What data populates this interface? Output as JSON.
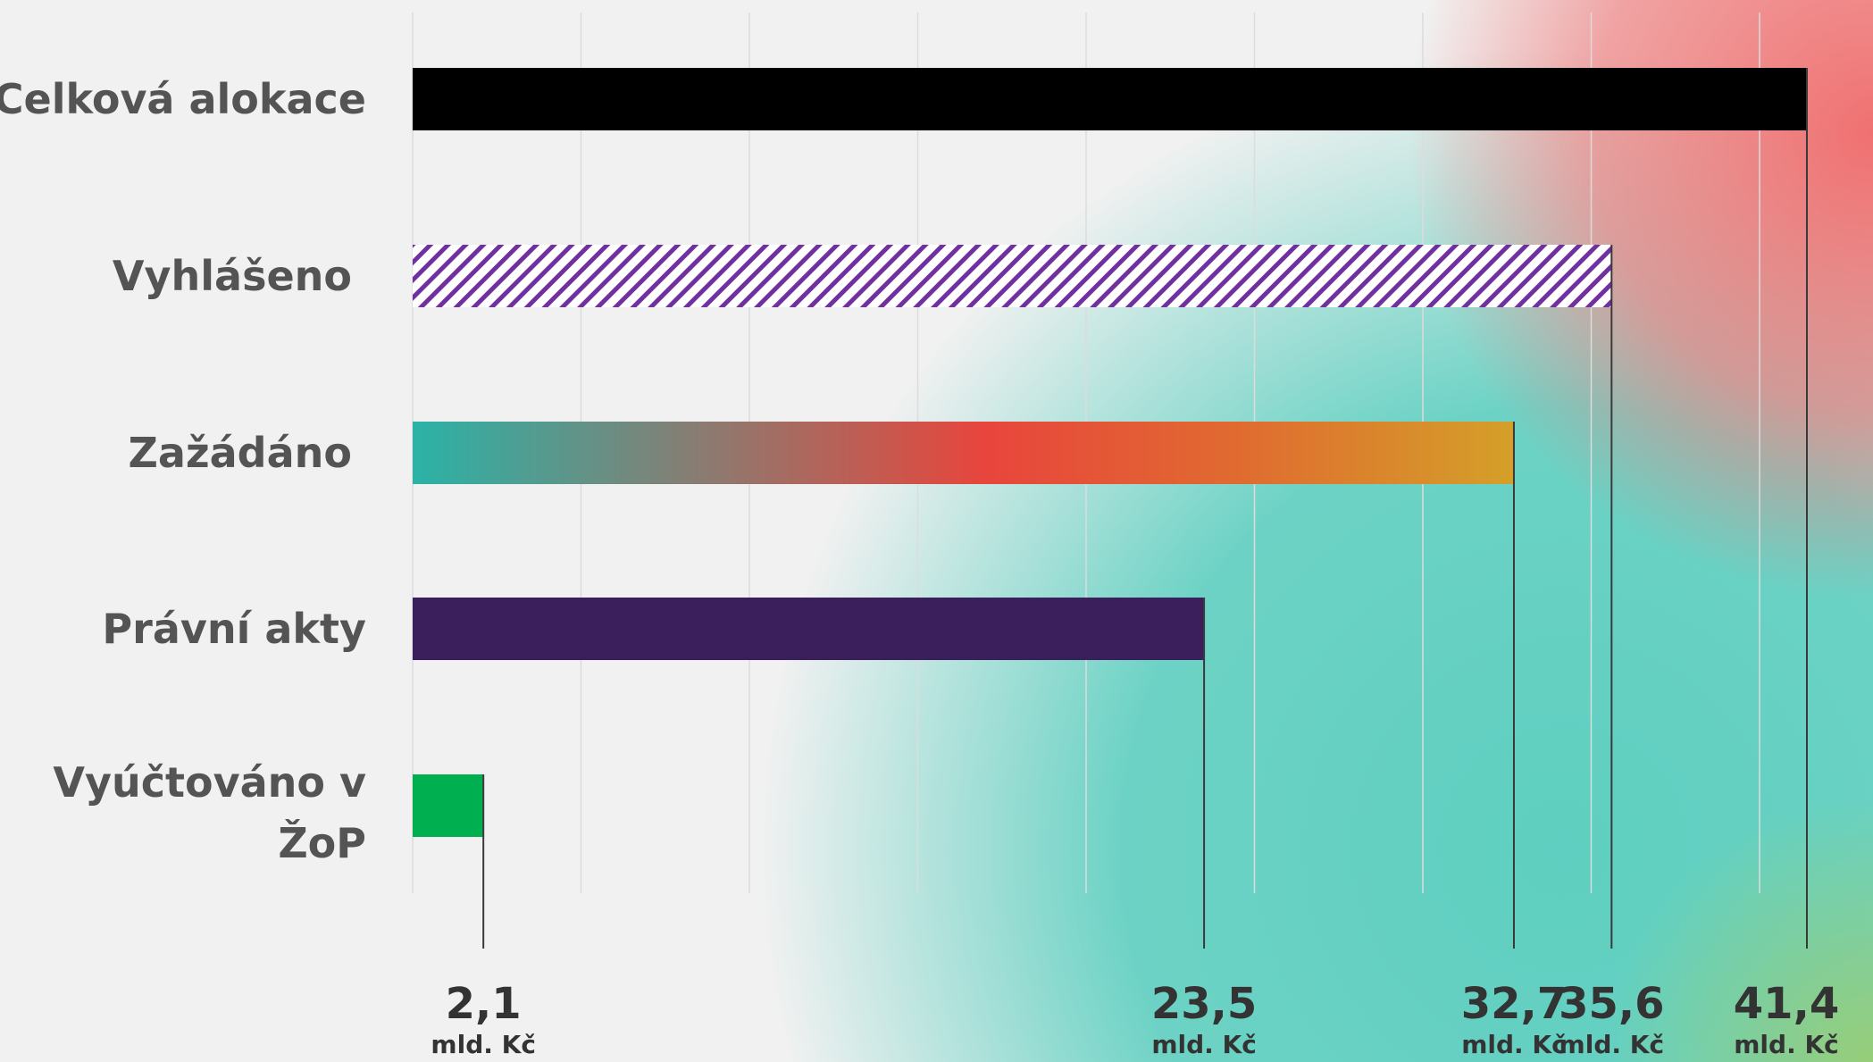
{
  "chart_data": {
    "type": "bar",
    "orientation": "horizontal",
    "title": "",
    "xlabel": "",
    "ylabel": "",
    "xlim": [
      0,
      41.4
    ],
    "grid": true,
    "unit_label": "mld. Kč",
    "categories": [
      "Celková alokace",
      "Vyhlášeno",
      "Zažádáno",
      "Právní akty",
      "Vyúčtováno v ŽoP"
    ],
    "values": [
      41.4,
      35.6,
      32.7,
      23.5,
      2.1
    ],
    "value_labels": [
      "41,4",
      "35,6",
      "32,7",
      "23,5",
      "2,1"
    ],
    "bar_styles": [
      "solid",
      "hatched",
      "gradient",
      "solid",
      "solid"
    ],
    "bar_colors": [
      "#000000",
      "#7030a0",
      "#e8453c",
      "#3a1f5c",
      "#00b050"
    ],
    "gradient_colors": [
      "#2ab3a7",
      "#e8453c",
      "#e06b30",
      "#d4a029"
    ]
  }
}
